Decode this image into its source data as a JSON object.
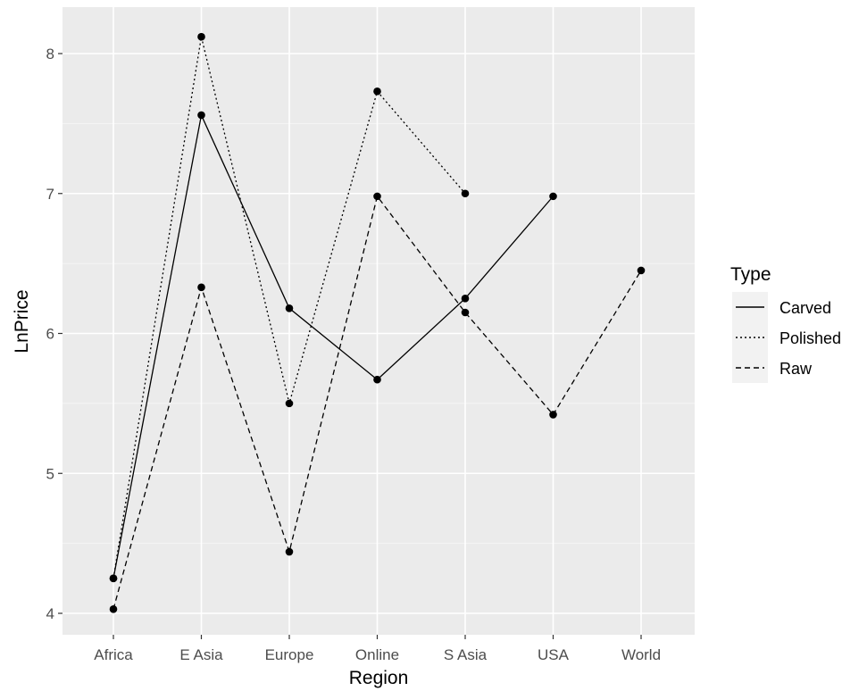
{
  "chart_data": {
    "type": "line",
    "title": "",
    "xlabel": "Region",
    "ylabel": "LnPrice",
    "categories": [
      "Africa",
      "E Asia",
      "Europe",
      "Online",
      "S Asia",
      "USA",
      "World"
    ],
    "ylim": [
      3.9,
      8.33
    ],
    "yticks": [
      4,
      5,
      6,
      7,
      8
    ],
    "grid": true,
    "legend": {
      "title": "Type",
      "position": "right"
    },
    "series": [
      {
        "name": "Carved",
        "linetype": "solid",
        "points": [
          [
            "Africa",
            4.25
          ],
          [
            "E Asia",
            7.56
          ],
          [
            "Europe",
            6.18
          ],
          [
            "Online",
            5.67
          ],
          [
            "S Asia",
            6.25
          ],
          [
            "USA",
            6.98
          ]
        ]
      },
      {
        "name": "Polished",
        "linetype": "dotted",
        "points": [
          [
            "Africa",
            4.25
          ],
          [
            "E Asia",
            8.12
          ],
          [
            "Europe",
            5.5
          ],
          [
            "Online",
            7.73
          ],
          [
            "S Asia",
            7.0
          ]
        ]
      },
      {
        "name": "Raw",
        "linetype": "dashed",
        "points": [
          [
            "Africa",
            4.03
          ],
          [
            "E Asia",
            6.33
          ],
          [
            "Europe",
            4.44
          ],
          [
            "Online",
            6.98
          ],
          [
            "S Asia",
            6.15
          ],
          [
            "USA",
            5.42
          ],
          [
            "World",
            6.45
          ]
        ]
      }
    ]
  },
  "colors": {
    "panel": "#ebebeb",
    "grid": "#ffffff",
    "line": "#000000",
    "tick_text": "#4d4d4d"
  }
}
